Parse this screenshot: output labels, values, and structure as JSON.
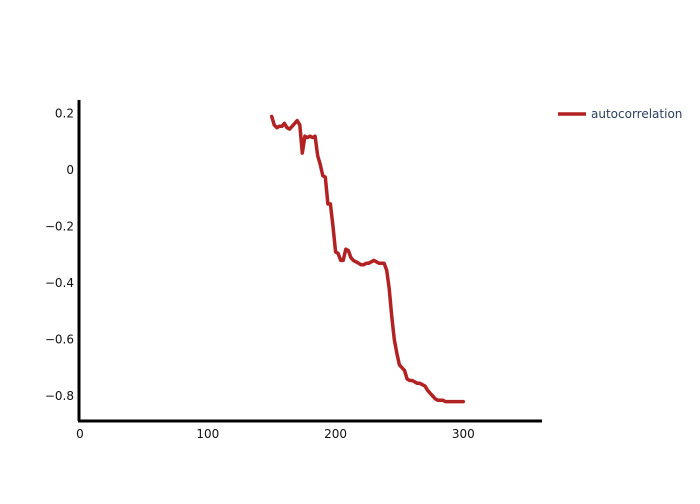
{
  "chart_data": {
    "type": "line",
    "title": "",
    "xlabel": "",
    "ylabel": "",
    "xlim": [
      0,
      360
    ],
    "ylim": [
      -0.885,
      0.248
    ],
    "xticks": [
      0,
      100,
      200,
      300
    ],
    "xtick_labels": [
      "0",
      "100",
      "200",
      "300"
    ],
    "yticks": [
      0.2,
      0,
      -0.2,
      -0.4,
      -0.6,
      -0.8
    ],
    "ytick_labels": [
      "0.2",
      "0",
      "−0.2",
      "−0.4",
      "−0.6",
      "−0.8"
    ],
    "grid": false,
    "legend_position": "top-right",
    "series": [
      {
        "name": "autocorrelation",
        "color": "#b22222",
        "x": [
          150,
          152,
          154,
          156,
          158,
          160,
          162,
          164,
          166,
          168,
          170,
          172,
          174,
          176,
          178,
          180,
          182,
          184,
          186,
          188,
          190,
          192,
          194,
          196,
          198,
          200,
          202,
          204,
          206,
          208,
          210,
          212,
          214,
          216,
          218,
          220,
          222,
          224,
          226,
          228,
          230,
          232,
          234,
          236,
          238,
          240,
          242,
          244,
          246,
          248,
          250,
          252,
          254,
          256,
          258,
          260,
          262,
          264,
          266,
          268,
          270,
          272,
          274,
          276,
          278,
          280,
          282,
          284,
          286,
          288,
          290,
          292,
          294,
          296,
          298,
          300
        ],
        "y": [
          0.19,
          0.16,
          0.15,
          0.155,
          0.155,
          0.165,
          0.15,
          0.145,
          0.155,
          0.165,
          0.175,
          0.16,
          0.06,
          0.12,
          0.115,
          0.12,
          0.115,
          0.12,
          0.05,
          0.02,
          -0.02,
          -0.025,
          -0.12,
          -0.12,
          -0.2,
          -0.29,
          -0.295,
          -0.32,
          -0.32,
          -0.28,
          -0.285,
          -0.31,
          -0.32,
          -0.325,
          -0.33,
          -0.335,
          -0.335,
          -0.33,
          -0.33,
          -0.325,
          -0.32,
          -0.325,
          -0.33,
          -0.33,
          -0.33,
          -0.355,
          -0.42,
          -0.52,
          -0.6,
          -0.65,
          -0.69,
          -0.7,
          -0.71,
          -0.74,
          -0.745,
          -0.745,
          -0.75,
          -0.755,
          -0.755,
          -0.76,
          -0.765,
          -0.78,
          -0.79,
          -0.8,
          -0.81,
          -0.815,
          -0.815,
          -0.815,
          -0.82,
          -0.82,
          -0.82,
          -0.82,
          -0.82,
          -0.82,
          -0.82,
          -0.82
        ]
      }
    ]
  }
}
